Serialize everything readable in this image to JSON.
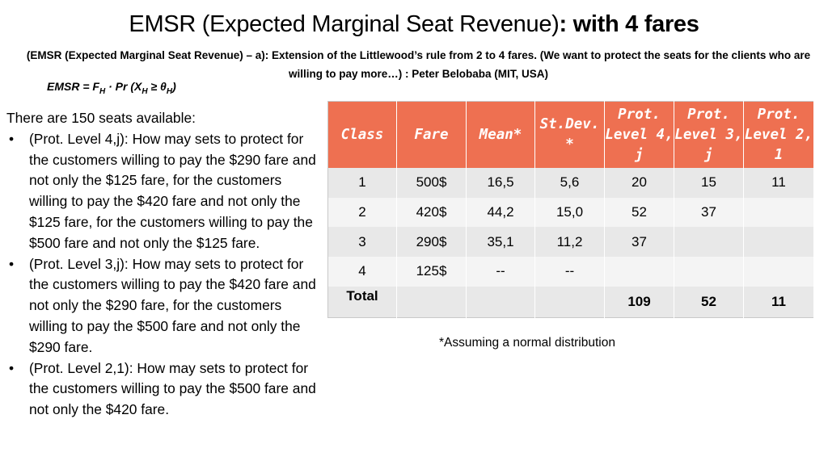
{
  "title": {
    "main": "EMSR (Expected Marginal Seat Revenue)",
    "bold": ": with 4 fares"
  },
  "subtitle": "(EMSR (Expected Marginal Seat Revenue) – a): Extension of the Littlewood’s rule from 2 to 4 fares. (We want to protect the seats for the clients who are willing to pay more…) : Peter Belobaba (MIT, USA)",
  "formula": {
    "lhs": "EMSR = F",
    "sub1": "H",
    "mid": " · Pr (X",
    "sub2": "H",
    "rel": " ≥ θ",
    "sub3": "H",
    "end": ")"
  },
  "left_text": {
    "intro": "There are 150 seats available:",
    "bullet_char": "•",
    "bullets": [
      "(Prot. Level 4,j): How may sets to protect for the customers willing to pay the $290 fare and not only the $125 fare, for the customers willing to pay the $420 fare and not only the $125 fare, for the customers willing to pay the $500 fare and not only the $125 fare.",
      "(Prot. Level 3,j): How may sets to protect for the customers willing to pay the $420 fare and not only the $290 fare, for the customers willing to pay the $500 fare and not only the $290 fare.",
      "(Prot. Level 2,1): How may sets to protect for the customers willing to pay the $500 fare and not only the $420 fare."
    ]
  },
  "table": {
    "headers": [
      "Class",
      "Fare",
      "Mean*",
      "St.Dev. *",
      "Prot. Level 4, j",
      "Prot. Level 3, j",
      "Prot. Level 2, 1"
    ],
    "rows": [
      [
        "1",
        "500$",
        "16,5",
        "5,6",
        "20",
        "15",
        "11"
      ],
      [
        "2",
        "420$",
        "44,2",
        "15,0",
        "52",
        "37",
        ""
      ],
      [
        "3",
        "290$",
        "35,1",
        "11,2",
        "37",
        "",
        ""
      ],
      [
        "4",
        "125$",
        "--",
        "--",
        "",
        "",
        ""
      ]
    ],
    "total": [
      "Total",
      "",
      "",
      "",
      "109",
      "52",
      "11"
    ],
    "colors": {
      "header_bg": "#ee7051",
      "row_odd": "#e8e8e8",
      "row_even": "#f4f4f4"
    }
  },
  "footnote": "*Assuming a normal distribution"
}
